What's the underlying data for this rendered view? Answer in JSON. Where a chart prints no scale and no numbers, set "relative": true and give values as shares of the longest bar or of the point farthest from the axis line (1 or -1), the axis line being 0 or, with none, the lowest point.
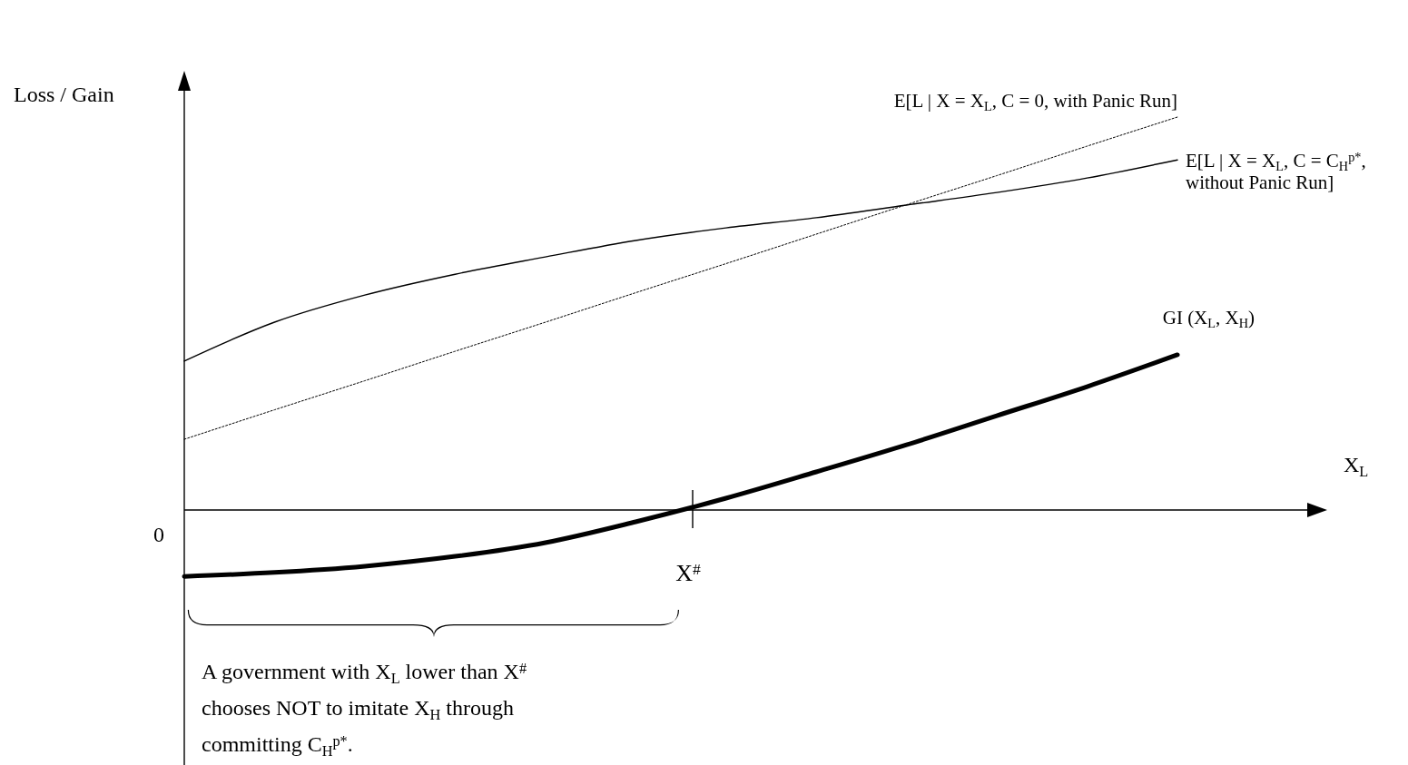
{
  "chart_data": {
    "type": "line",
    "relative": true,
    "ylabel": "Loss / Gain",
    "categories": [
      null,
      null,
      null,
      null,
      null,
      null,
      null,
      null,
      null,
      null,
      null,
      null
    ],
    "series": [
      {
        "name": "E[L | X = X$_{L}$, C = 0, with Panic Run]",
        "color": "#000000",
        "line_style": "dotted",
        "values": [
          0.18,
          0.255,
          0.329,
          0.404,
          0.478,
          0.553,
          0.627,
          0.702,
          0.777,
          0.851,
          0.926,
          1.0
        ]
      },
      {
        "name": "E[L | X = X$_{L}$, C = C$_{H}$$^{p*}$, without Panic Run]",
        "color": "#000000",
        "line_style": "solid",
        "values": [
          0.379,
          0.478,
          0.547,
          0.6,
          0.644,
          0.686,
          0.718,
          0.744,
          0.776,
          0.808,
          0.845,
          0.891
        ]
      },
      {
        "name": "GI (X$_{L}$, X$_{H}$)",
        "color": "#000000",
        "line_style": "solid",
        "values": [
          -0.169,
          -0.159,
          -0.143,
          -0.118,
          -0.083,
          -0.03,
          0.03,
          0.097,
          0.166,
          0.24,
          0.314,
          0.395
        ]
      }
    ],
    "annotations": [
      "0",
      "X$^{#}$",
      "A government with X$_{L}$ lower than X$^{#}$ chooses NOT to imitate X$_{H}$ through committing C$_{H}$$^{p*}$.",
      "X$_{L}$"
    ]
  }
}
